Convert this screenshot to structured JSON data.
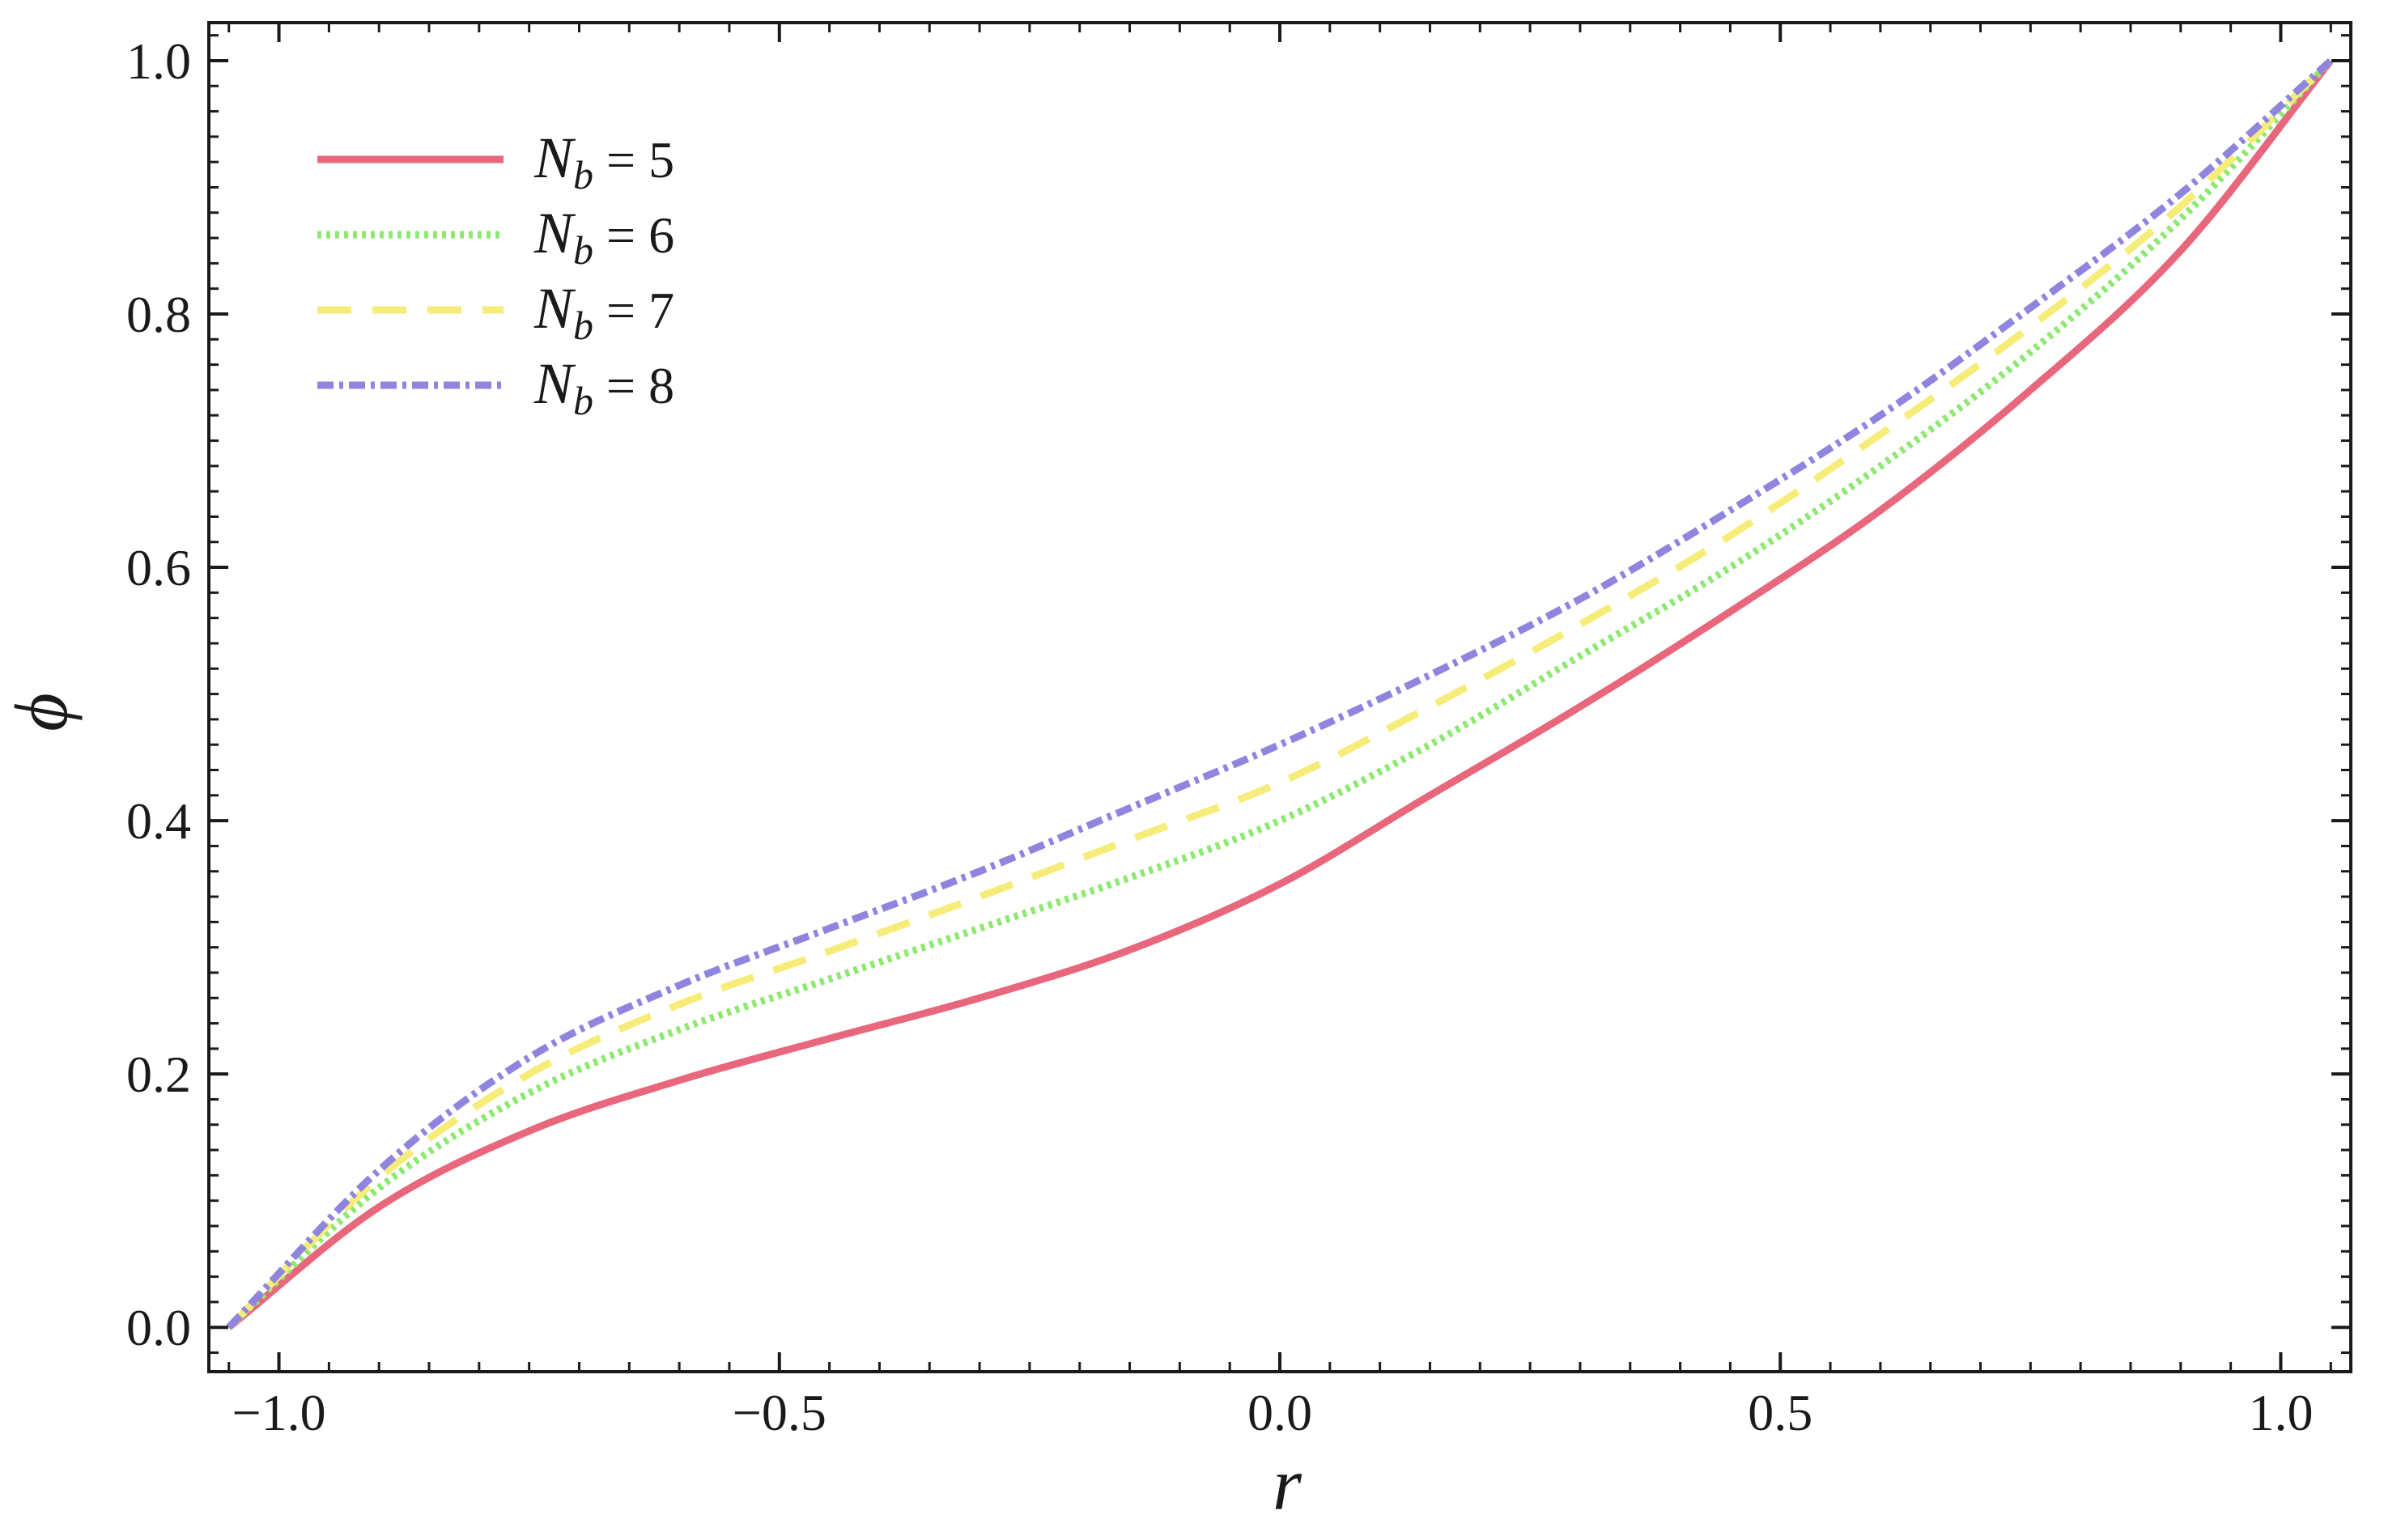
{
  "chart_data": {
    "type": "line",
    "xlabel": "r",
    "ylabel": "ϕ",
    "xlim": [
      -1.07,
      1.07
    ],
    "ylim": [
      -0.035,
      1.03
    ],
    "xticks": [
      -1.0,
      -0.5,
      0.0,
      0.5,
      1.0
    ],
    "xtick_labels": [
      "−1.0",
      "−0.5",
      "0.0",
      "0.5",
      "1.0"
    ],
    "yticks": [
      0.0,
      0.2,
      0.4,
      0.6,
      0.8,
      1.0
    ],
    "ytick_labels": [
      "0.0",
      "0.2",
      "0.4",
      "0.6",
      "0.8",
      "1.0"
    ],
    "grid": false,
    "legend_position": "top-left",
    "x": [
      -1.05,
      -0.9,
      -0.75,
      -0.6,
      -0.45,
      -0.3,
      -0.15,
      0.0,
      0.15,
      0.3,
      0.45,
      0.6,
      0.75,
      0.9,
      1.05
    ],
    "series": [
      {
        "legend_base": "N",
        "legend_sub": "b",
        "legend_value": "= 5",
        "color": "#e8677d",
        "dash": "solid",
        "values": [
          0.0,
          0.095,
          0.155,
          0.195,
          0.228,
          0.26,
          0.298,
          0.35,
          0.42,
          0.49,
          0.565,
          0.645,
          0.74,
          0.85,
          1.0
        ]
      },
      {
        "legend_base": "N",
        "legend_sub": "b",
        "legend_value": "= 6",
        "color": "#8ee872",
        "dash": "dotted",
        "values": [
          0.0,
          0.11,
          0.185,
          0.235,
          0.275,
          0.315,
          0.355,
          0.4,
          0.46,
          0.53,
          0.6,
          0.68,
          0.77,
          0.875,
          1.0
        ]
      },
      {
        "legend_base": "N",
        "legend_sub": "b",
        "legend_value": "= 7",
        "color": "#f6ec7a",
        "dash": "dashed",
        "values": [
          0.0,
          0.118,
          0.2,
          0.255,
          0.297,
          0.34,
          0.385,
          0.43,
          0.49,
          0.555,
          0.625,
          0.705,
          0.79,
          0.885,
          1.0
        ]
      },
      {
        "legend_base": "N",
        "legend_sub": "b",
        "legend_value": "= 8",
        "color": "#8f85de",
        "dash": "dashdot",
        "values": [
          0.0,
          0.124,
          0.213,
          0.27,
          0.315,
          0.36,
          0.41,
          0.46,
          0.515,
          0.575,
          0.645,
          0.72,
          0.805,
          0.895,
          1.0
        ]
      }
    ]
  }
}
